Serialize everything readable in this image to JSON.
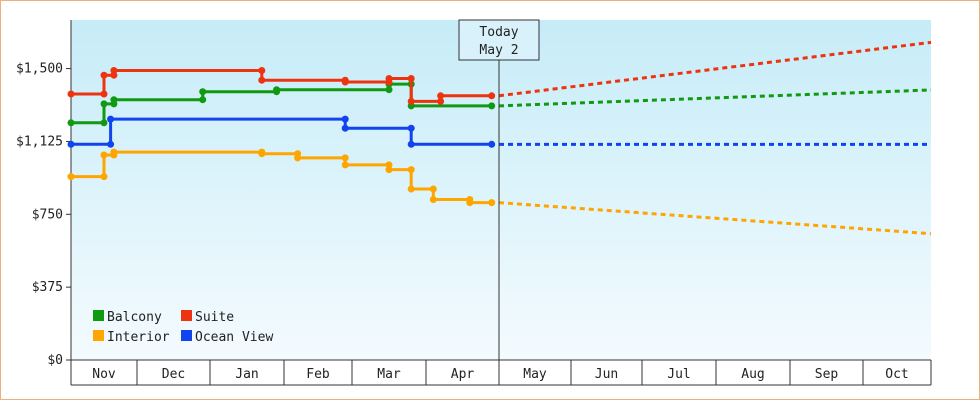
{
  "chart_data": {
    "type": "line",
    "y_ticks": [
      0,
      375,
      750,
      1125,
      1500
    ],
    "y_tick_labels": [
      "$0",
      "$375",
      "$750",
      "$1,125",
      "$1,500"
    ],
    "ylim": [
      0,
      1500
    ],
    "x_months": [
      "Nov",
      "Dec",
      "Jan",
      "Feb",
      "Mar",
      "Apr",
      "May",
      "Jun",
      "Jul",
      "Aug",
      "Sep",
      "Oct"
    ],
    "today_label_1": "Today",
    "today_label_2": "May 2",
    "legend_placement": "bottom-left",
    "series": [
      {
        "name": "Balcony",
        "color": "#119911",
        "history": [
          [
            0,
            1221
          ],
          [
            0.5,
            1221
          ],
          [
            0.5,
            1318
          ],
          [
            0.65,
            1318
          ],
          [
            0.65,
            1340
          ],
          [
            1.9,
            1340
          ],
          [
            1.9,
            1381
          ],
          [
            2.9,
            1381
          ],
          [
            2.9,
            1391
          ],
          [
            4.5,
            1391
          ],
          [
            4.5,
            1420
          ],
          [
            4.8,
            1420
          ],
          [
            4.8,
            1308
          ],
          [
            5.9,
            1308
          ]
        ],
        "forecast_end": 1390
      },
      {
        "name": "Suite",
        "color": "#ee3311",
        "history": [
          [
            0,
            1369
          ],
          [
            0.5,
            1369
          ],
          [
            0.5,
            1466
          ],
          [
            0.65,
            1466
          ],
          [
            0.65,
            1490
          ],
          [
            2.7,
            1490
          ],
          [
            2.7,
            1440
          ],
          [
            3.9,
            1440
          ],
          [
            3.9,
            1431
          ],
          [
            4.5,
            1431
          ],
          [
            4.5,
            1449
          ],
          [
            4.8,
            1449
          ],
          [
            4.8,
            1331
          ],
          [
            5.2,
            1331
          ],
          [
            5.2,
            1360
          ],
          [
            5.9,
            1360
          ]
        ],
        "forecast_end": 1635
      },
      {
        "name": "Interior",
        "color": "#ffa500",
        "history": [
          [
            0,
            944
          ],
          [
            0.5,
            944
          ],
          [
            0.5,
            1055
          ],
          [
            0.65,
            1055
          ],
          [
            0.65,
            1070
          ],
          [
            2.7,
            1070
          ],
          [
            2.7,
            1062
          ],
          [
            3.2,
            1062
          ],
          [
            3.2,
            1040
          ],
          [
            3.9,
            1040
          ],
          [
            3.9,
            1004
          ],
          [
            4.5,
            1004
          ],
          [
            4.5,
            980
          ],
          [
            4.8,
            980
          ],
          [
            4.8,
            880
          ],
          [
            5.1,
            880
          ],
          [
            5.1,
            826
          ],
          [
            5.6,
            826
          ],
          [
            5.6,
            810
          ],
          [
            5.9,
            810
          ]
        ],
        "forecast_end": 650
      },
      {
        "name": "Ocean View",
        "color": "#1144ee",
        "history": [
          [
            0,
            1110
          ],
          [
            0.6,
            1110
          ],
          [
            0.6,
            1240
          ],
          [
            3.9,
            1240
          ],
          [
            3.9,
            1193
          ],
          [
            4.8,
            1193
          ],
          [
            4.8,
            1110
          ],
          [
            5.9,
            1110
          ]
        ],
        "forecast_end": 1110
      }
    ]
  }
}
